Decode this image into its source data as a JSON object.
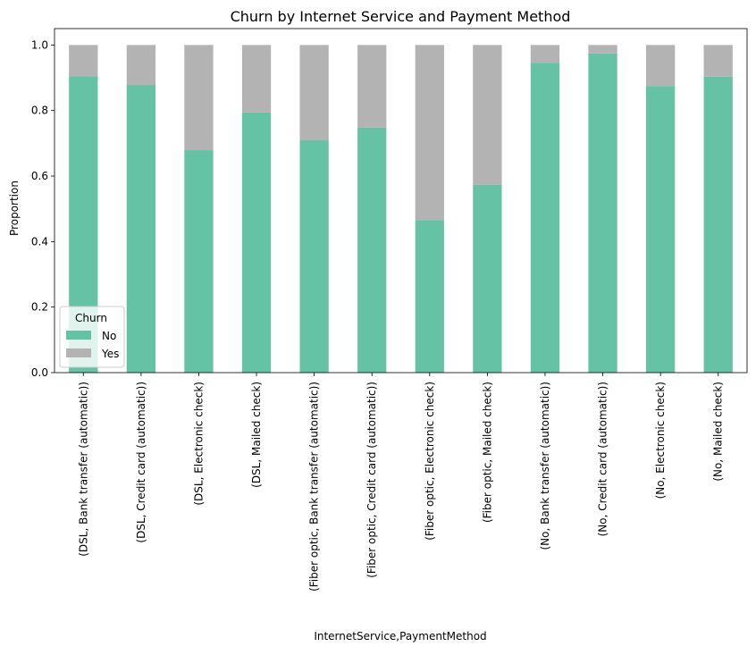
{
  "chart_data": {
    "type": "bar",
    "stacked": true,
    "title": "Churn by Internet Service and Payment Method",
    "xlabel": "InternetService,PaymentMethod",
    "ylabel": "Proportion",
    "ylim": [
      0,
      1.05
    ],
    "yticks": [
      "0.0",
      "0.2",
      "0.4",
      "0.6",
      "0.8",
      "1.0"
    ],
    "grid": false,
    "legend": {
      "title": "Churn",
      "placement": "lower-left",
      "entries": [
        "No",
        "Yes"
      ]
    },
    "categories": [
      "(DSL, Bank transfer (automatic))",
      "(DSL, Credit card (automatic))",
      "(DSL, Electronic check)",
      "(DSL, Mailed check)",
      "(Fiber optic, Bank transfer (automatic))",
      "(Fiber optic, Credit card (automatic))",
      "(Fiber optic, Electronic check)",
      "(Fiber optic, Mailed check)",
      "(No, Bank transfer (automatic))",
      "(No, Credit card (automatic))",
      "(No, Electronic check)",
      "(No, Mailed check)"
    ],
    "series": [
      {
        "name": "No",
        "color": "#66c2a5",
        "values": [
          0.905,
          0.878,
          0.679,
          0.794,
          0.709,
          0.748,
          0.466,
          0.573,
          0.946,
          0.974,
          0.875,
          0.903
        ]
      },
      {
        "name": "Yes",
        "color": "#b3b3b3",
        "values": [
          0.095,
          0.122,
          0.321,
          0.206,
          0.291,
          0.252,
          0.534,
          0.427,
          0.054,
          0.026,
          0.125,
          0.097
        ]
      }
    ]
  }
}
